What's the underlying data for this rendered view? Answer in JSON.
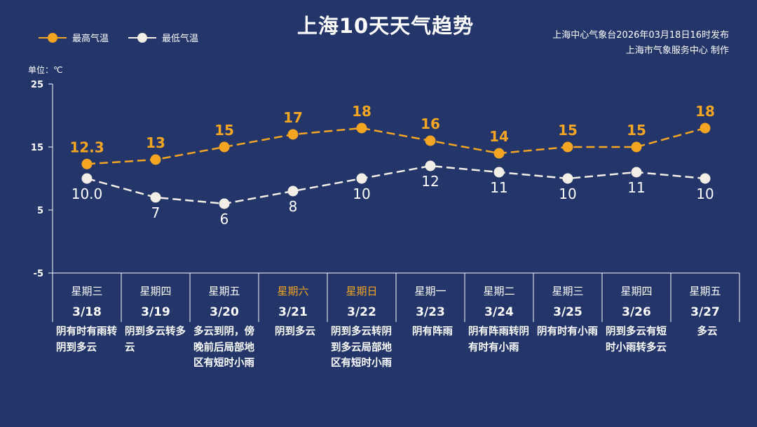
{
  "title": "上海10天天气趋势",
  "issuer": {
    "line1": "上海中心气象台2026年03月18日16时发布",
    "line2": "上海市气象服务中心  制作"
  },
  "unit_label": "单位：℃",
  "colors": {
    "background": "#233569",
    "high": "#f4a623",
    "low": "#f3efe6",
    "weekend": "#f4a623"
  },
  "chart_data": {
    "type": "line",
    "ylim": [
      -5,
      25
    ],
    "yticks": [
      25,
      15,
      5,
      -5
    ],
    "legend_position": "top-left",
    "categories": [
      "3/18",
      "3/19",
      "3/20",
      "3/21",
      "3/22",
      "3/23",
      "3/24",
      "3/25",
      "3/26",
      "3/27"
    ],
    "weekdays": [
      "星期三",
      "星期四",
      "星期五",
      "星期六",
      "星期日",
      "星期一",
      "星期二",
      "星期三",
      "星期四",
      "星期五"
    ],
    "weekend": [
      false,
      false,
      false,
      true,
      true,
      false,
      false,
      false,
      false,
      false
    ],
    "series": [
      {
        "name": "最高气温",
        "values": [
          12.3,
          13,
          15,
          17,
          18,
          16,
          14,
          15,
          15,
          18
        ],
        "labels": [
          "12.3",
          "13",
          "15",
          "17",
          "18",
          "16",
          "14",
          "15",
          "15",
          "18"
        ]
      },
      {
        "name": "最低气温",
        "values": [
          10.0,
          7,
          6,
          8,
          10,
          12,
          11,
          10,
          11,
          10
        ],
        "labels": [
          "10.0",
          "7",
          "6",
          "8",
          "10",
          "12",
          "11",
          "10",
          "11",
          "10"
        ]
      }
    ],
    "descriptions": [
      "阴有时有雨转阴到多云",
      "阴到多云转多云",
      "多云到阴，傍晚前后局部地区有短时小雨",
      "阴到多云",
      "阴到多云转阴到多云局部地区有短时小雨",
      "阴有阵雨",
      "阴有阵雨转阴有时有小雨",
      "阴有时有小雨",
      "阴到多云有短时小雨转多云",
      "多云"
    ]
  }
}
